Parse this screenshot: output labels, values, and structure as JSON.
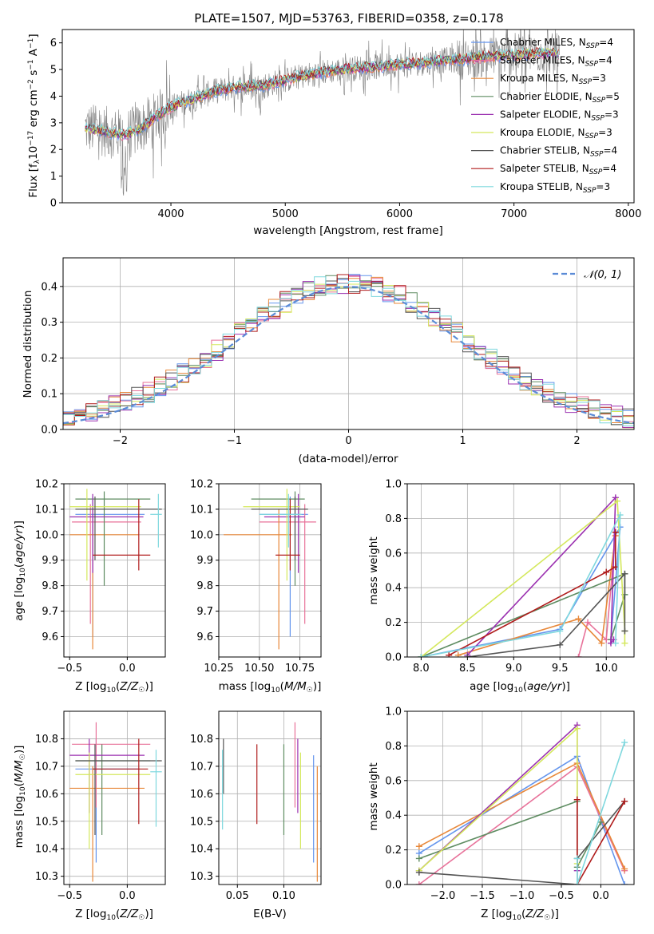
{
  "chart_data": [
    {
      "id": "spectrum",
      "type": "line",
      "title": "PLATE=1507, MJD=53763, FIBERID=0358, z=0.178",
      "xlabel": "wavelength [Angstrom, rest frame]",
      "ylabel": "Flux [f_λ10^-17 erg cm^-2 s^-1 A^-1]",
      "xlim": [
        3050,
        8050
      ],
      "ylim": [
        0,
        6.5
      ],
      "xticks": [
        4000,
        5000,
        6000,
        7000,
        8000
      ],
      "yticks": [
        0,
        1,
        2,
        3,
        4,
        5,
        6
      ],
      "grid": false,
      "legend_position": "right",
      "data_color": "#808080",
      "series": [
        {
          "name": "Chabrier MILES, N_SSP=4",
          "color": "#6495ED"
        },
        {
          "name": "Salpeter MILES, N_SSP=4",
          "color": "#E8729A"
        },
        {
          "name": "Kroupa MILES, N_SSP=3",
          "color": "#E8883A"
        },
        {
          "name": "Chabrier ELODIE, N_SSP=5",
          "color": "#5E8C61"
        },
        {
          "name": "Salpeter ELODIE, N_SSP=3",
          "color": "#9B30B0"
        },
        {
          "name": "Kroupa ELODIE, N_SSP=3",
          "color": "#D4E85C"
        },
        {
          "name": "Chabrier STELIB, N_SSP=4",
          "color": "#555555"
        },
        {
          "name": "Salpeter STELIB, N_SSP=4",
          "color": "#B01C1C"
        },
        {
          "name": "Kroupa STELIB, N_SSP=3",
          "color": "#7FD8DE"
        }
      ],
      "model_trace": {
        "x": [
          3250,
          3400,
          3500,
          3600,
          3700,
          3800,
          3900,
          4000,
          4200,
          4400,
          4600,
          4800,
          5000,
          5200,
          5400,
          5600,
          5800,
          6000,
          6200,
          6400,
          6600,
          6800,
          7000,
          7200,
          7400
        ],
        "y": [
          2.8,
          2.7,
          2.6,
          2.55,
          2.7,
          3.0,
          3.3,
          3.6,
          3.9,
          4.2,
          4.35,
          4.4,
          4.6,
          4.8,
          4.95,
          5.05,
          5.1,
          5.2,
          5.25,
          5.35,
          5.4,
          5.5,
          5.55,
          5.6,
          5.6
        ]
      }
    },
    {
      "id": "residuals",
      "type": "step",
      "xlabel": "(data-model)/error",
      "ylabel": "Normed distribution",
      "xlim": [
        -2.5,
        2.5
      ],
      "ylim": [
        0,
        0.48
      ],
      "xticks": [
        -2,
        -1,
        0,
        1,
        2
      ],
      "yticks": [
        0.0,
        0.1,
        0.2,
        0.3,
        0.4
      ],
      "grid": true,
      "legend": "𝒩(0, 1)",
      "legend_position": "top-right",
      "normal_curve_color": "#5B8BD6",
      "series_colors": [
        "#6495ED",
        "#E8729A",
        "#E8883A",
        "#5E8C61",
        "#9B30B0",
        "#D4E85C",
        "#555555",
        "#B01C1C",
        "#7FD8DE"
      ]
    },
    {
      "id": "age_vs_Z",
      "type": "errorbar",
      "xlabel": "Z [log10(Z/Z☉)]",
      "ylabel": "age  [log10(age/yr)]",
      "xlim": [
        -0.55,
        0.33
      ],
      "ylim": [
        9.52,
        10.2
      ],
      "xticks": [
        -0.5,
        0.0
      ],
      "xticklabels": [
        "−0.5",
        "0.0"
      ],
      "yticks": [
        9.6,
        9.7,
        9.8,
        9.9,
        10.0,
        10.1,
        10.2
      ],
      "points": [
        {
          "color": "#6495ED",
          "x": -0.3,
          "xlo": -0.45,
          "xhi": 0.15,
          "y": 10.08,
          "ylo": 9.6,
          "yhi": 10.15
        },
        {
          "color": "#E8729A",
          "x": -0.32,
          "xlo": -0.48,
          "xhi": 0.12,
          "y": 10.05,
          "ylo": 9.65,
          "yhi": 10.12
        },
        {
          "color": "#E8883A",
          "x": -0.3,
          "xlo": -0.5,
          "xhi": 0.1,
          "y": 10.0,
          "ylo": 9.55,
          "yhi": 10.1
        },
        {
          "color": "#5E8C61",
          "x": -0.2,
          "xlo": -0.45,
          "xhi": 0.2,
          "y": 10.14,
          "ylo": 9.8,
          "yhi": 10.17
        },
        {
          "color": "#9B30B0",
          "x": -0.3,
          "xlo": -0.5,
          "xhi": 0.14,
          "y": 10.07,
          "ylo": 9.85,
          "yhi": 10.16
        },
        {
          "color": "#D4E85C",
          "x": -0.35,
          "xlo": -0.5,
          "xhi": 0.12,
          "y": 10.11,
          "ylo": 9.82,
          "yhi": 10.18
        },
        {
          "color": "#555555",
          "x": -0.28,
          "xlo": -0.45,
          "xhi": 0.3,
          "y": 10.1,
          "ylo": 9.9,
          "yhi": 10.15
        },
        {
          "color": "#B01C1C",
          "x": 0.1,
          "xlo": -0.3,
          "xhi": 0.2,
          "y": 9.92,
          "ylo": 9.86,
          "yhi": 10.14
        },
        {
          "color": "#7FD8DE",
          "x": 0.27,
          "xlo": 0.2,
          "xhi": 0.3,
          "y": 10.08,
          "ylo": 9.95,
          "yhi": 10.16
        }
      ]
    },
    {
      "id": "age_vs_mass",
      "type": "errorbar",
      "xlabel": "mass [log10(M/M☉)]",
      "ylabel": "",
      "xlim": [
        10.25,
        10.88
      ],
      "ylim": [
        9.52,
        10.2
      ],
      "xticks": [
        10.25,
        10.5,
        10.75
      ],
      "xticklabels": [
        "10.25",
        "10.50",
        "10.75"
      ],
      "yticks": [
        9.6,
        9.7,
        9.8,
        9.9,
        10.0,
        10.1,
        10.2
      ],
      "points": [
        {
          "color": "#6495ED",
          "x": 10.69,
          "xlo": 10.5,
          "xhi": 10.8,
          "y": 10.08,
          "ylo": 9.6,
          "yhi": 10.15
        },
        {
          "color": "#E8729A",
          "x": 10.78,
          "xlo": 10.5,
          "xhi": 10.85,
          "y": 10.05,
          "ylo": 9.65,
          "yhi": 10.12
        },
        {
          "color": "#E8883A",
          "x": 10.62,
          "xlo": 10.28,
          "xhi": 10.7,
          "y": 10.0,
          "ylo": 9.55,
          "yhi": 10.1
        },
        {
          "color": "#5E8C61",
          "x": 10.72,
          "xlo": 10.45,
          "xhi": 10.78,
          "y": 10.14,
          "ylo": 9.8,
          "yhi": 10.17
        },
        {
          "color": "#9B30B0",
          "x": 10.74,
          "xlo": 10.53,
          "xhi": 10.78,
          "y": 10.07,
          "ylo": 9.85,
          "yhi": 10.16
        },
        {
          "color": "#D4E85C",
          "x": 10.67,
          "xlo": 10.4,
          "xhi": 10.75,
          "y": 10.11,
          "ylo": 9.82,
          "yhi": 10.18
        },
        {
          "color": "#555555",
          "x": 10.72,
          "xlo": 10.45,
          "xhi": 10.8,
          "y": 10.1,
          "ylo": 9.9,
          "yhi": 10.15
        },
        {
          "color": "#B01C1C",
          "x": 10.69,
          "xlo": 10.6,
          "xhi": 10.75,
          "y": 9.92,
          "ylo": 9.86,
          "yhi": 10.14
        },
        {
          "color": "#7FD8DE",
          "x": 10.68,
          "xlo": 10.5,
          "xhi": 10.76,
          "y": 10.08,
          "ylo": 9.95,
          "yhi": 10.16
        }
      ]
    },
    {
      "id": "weight_vs_age",
      "type": "line",
      "xlabel": "age  [log10(age/yr)]",
      "ylabel": "mass weight",
      "xlim": [
        7.85,
        10.3
      ],
      "ylim": [
        0,
        1.0
      ],
      "xticks": [
        8.0,
        8.5,
        9.0,
        9.5,
        10.0
      ],
      "yticks": [
        0.0,
        0.2,
        0.4,
        0.6,
        0.8,
        1.0
      ],
      "series": [
        {
          "color": "#6495ED",
          "x": [
            8.0,
            9.5,
            10.15,
            10.05
          ],
          "y": [
            0.0,
            0.16,
            0.75,
            0.1
          ]
        },
        {
          "color": "#E8729A",
          "x": [
            9.7,
            9.8,
            10.0,
            10.1
          ],
          "y": [
            0.0,
            0.2,
            0.1,
            0.7
          ]
        },
        {
          "color": "#E8883A",
          "x": [
            8.4,
            9.7,
            9.95,
            10.1
          ],
          "y": [
            0.01,
            0.22,
            0.08,
            0.7
          ]
        },
        {
          "color": "#5E8C61",
          "x": [
            8.0,
            10.2,
            10.2,
            10.05
          ],
          "y": [
            0.0,
            0.48,
            0.36,
            0.1
          ]
        },
        {
          "color": "#9B30B0",
          "x": [
            8.5,
            10.1,
            10.05,
            10.08
          ],
          "y": [
            0.01,
            0.92,
            0.08,
            0.1
          ]
        },
        {
          "color": "#D4E85C",
          "x": [
            8.0,
            10.12,
            10.2,
            10.2
          ],
          "y": [
            0.0,
            0.9,
            0.15,
            0.08
          ]
        },
        {
          "color": "#555555",
          "x": [
            8.5,
            9.5,
            10.2,
            10.2
          ],
          "y": [
            0.0,
            0.07,
            0.48,
            0.15
          ]
        },
        {
          "color": "#B01C1C",
          "x": [
            8.3,
            10.0,
            10.1,
            10.1
          ],
          "y": [
            0.01,
            0.49,
            0.52,
            0.72
          ]
        },
        {
          "color": "#7FD8DE",
          "x": [
            8.0,
            9.5,
            10.15,
            10.1
          ],
          "y": [
            0.0,
            0.15,
            0.82,
            0.08
          ]
        }
      ]
    },
    {
      "id": "mass_vs_Z",
      "type": "errorbar",
      "xlabel": "Z [log10(Z/Z☉)]",
      "ylabel": "mass [log10(M/M☉)]",
      "xlim": [
        -0.55,
        0.33
      ],
      "ylim": [
        10.27,
        10.9
      ],
      "xticks": [
        -0.5,
        0.0
      ],
      "xticklabels": [
        "−0.5",
        "0.0"
      ],
      "yticks": [
        10.3,
        10.4,
        10.5,
        10.6,
        10.7,
        10.8
      ],
      "points": [
        {
          "color": "#6495ED",
          "x": -0.27,
          "xlo": -0.45,
          "xhi": 0.1,
          "y": 10.69,
          "ylo": 10.35,
          "yhi": 10.8
        },
        {
          "color": "#E8729A",
          "x": -0.27,
          "xlo": -0.48,
          "xhi": 0.2,
          "y": 10.78,
          "ylo": 10.55,
          "yhi": 10.86
        },
        {
          "color": "#E8883A",
          "x": -0.3,
          "xlo": -0.5,
          "xhi": 0.15,
          "y": 10.62,
          "ylo": 10.28,
          "yhi": 10.7
        },
        {
          "color": "#5E8C61",
          "x": -0.22,
          "xlo": -0.45,
          "xhi": 0.2,
          "y": 10.72,
          "ylo": 10.45,
          "yhi": 10.78
        },
        {
          "color": "#9B30B0",
          "x": -0.33,
          "xlo": -0.5,
          "xhi": 0.15,
          "y": 10.74,
          "ylo": 10.53,
          "yhi": 10.8
        },
        {
          "color": "#D4E85C",
          "x": -0.33,
          "xlo": -0.45,
          "xhi": 0.2,
          "y": 10.67,
          "ylo": 10.4,
          "yhi": 10.75
        },
        {
          "color": "#555555",
          "x": -0.28,
          "xlo": -0.45,
          "xhi": 0.3,
          "y": 10.72,
          "ylo": 10.45,
          "yhi": 10.78
        },
        {
          "color": "#B01C1C",
          "x": 0.1,
          "xlo": -0.3,
          "xhi": 0.18,
          "y": 10.69,
          "ylo": 10.49,
          "yhi": 10.8
        },
        {
          "color": "#7FD8DE",
          "x": 0.25,
          "xlo": 0.2,
          "xhi": 0.3,
          "y": 10.68,
          "ylo": 10.48,
          "yhi": 10.76
        }
      ]
    },
    {
      "id": "mass_vs_EBV",
      "type": "errorbar",
      "xlabel": "E(B-V)",
      "ylabel": "",
      "xlim": [
        0.03,
        0.14
      ],
      "ylim": [
        10.27,
        10.9
      ],
      "xticks": [
        0.05,
        0.1
      ],
      "xticklabels": [
        "0.05",
        "0.10"
      ],
      "yticks": [
        10.3,
        10.4,
        10.5,
        10.6,
        10.7,
        10.8
      ],
      "points": [
        {
          "color": "#6495ED",
          "x": 0.132,
          "ylo": 10.35,
          "yhi": 10.74
        },
        {
          "color": "#E8729A",
          "x": 0.112,
          "ylo": 10.55,
          "yhi": 10.86
        },
        {
          "color": "#E8883A",
          "x": 0.136,
          "ylo": 10.28,
          "yhi": 10.7
        },
        {
          "color": "#5E8C61",
          "x": 0.1,
          "ylo": 10.45,
          "yhi": 10.78
        },
        {
          "color": "#9B30B0",
          "x": 0.115,
          "ylo": 10.53,
          "yhi": 10.8
        },
        {
          "color": "#D4E85C",
          "x": 0.118,
          "ylo": 10.4,
          "yhi": 10.75
        },
        {
          "color": "#555555",
          "x": 0.035,
          "ylo": 10.6,
          "yhi": 10.8
        },
        {
          "color": "#B01C1C",
          "x": 0.071,
          "ylo": 10.49,
          "yhi": 10.78
        },
        {
          "color": "#7FD8DE",
          "x": 0.034,
          "ylo": 10.47,
          "yhi": 10.76
        }
      ]
    },
    {
      "id": "weight_vs_Z",
      "type": "line",
      "xlabel": "Z [log10(Z/Z☉)]",
      "ylabel": "mass weight",
      "xlim": [
        -2.45,
        0.42
      ],
      "ylim": [
        0,
        1.0
      ],
      "xticks": [
        -2.0,
        -1.5,
        -1.0,
        -0.5,
        0.0
      ],
      "xticklabels": [
        "−2.0",
        "−1.5",
        "−1.0",
        "−0.5",
        "0.0"
      ],
      "yticks": [
        0.0,
        0.2,
        0.4,
        0.6,
        0.8,
        1.0
      ],
      "series": [
        {
          "color": "#6495ED",
          "x": [
            -2.3,
            -0.3,
            0.3
          ],
          "y": [
            0.18,
            0.74,
            0.0
          ]
        },
        {
          "color": "#E8729A",
          "x": [
            -2.3,
            -0.3,
            0.3
          ],
          "y": [
            0.0,
            0.68,
            0.08
          ]
        },
        {
          "color": "#E8883A",
          "x": [
            -2.3,
            -0.3,
            0.3
          ],
          "y": [
            0.22,
            0.7,
            0.09
          ]
        },
        {
          "color": "#5E8C61",
          "x": [
            -2.3,
            -0.3,
            -0.3,
            0.0
          ],
          "y": [
            0.15,
            0.48,
            0.1,
            0.36
          ]
        },
        {
          "color": "#9B30B0",
          "x": [
            -2.3,
            -0.3,
            -0.3
          ],
          "y": [
            0.08,
            0.92,
            0.08
          ]
        },
        {
          "color": "#D4E85C",
          "x": [
            -2.3,
            -0.3,
            -0.3
          ],
          "y": [
            0.08,
            0.9,
            0.12
          ]
        },
        {
          "color": "#555555",
          "x": [
            -2.3,
            -0.3,
            -0.3,
            0.3
          ],
          "y": [
            0.07,
            0.0,
            0.15,
            0.48
          ]
        },
        {
          "color": "#B01C1C",
          "x": [
            -0.3,
            -0.3,
            0.3
          ],
          "y": [
            0.49,
            0.0,
            0.48
          ]
        },
        {
          "color": "#7FD8DE",
          "x": [
            -0.3,
            -0.3,
            0.3
          ],
          "y": [
            0.15,
            0.0,
            0.82
          ]
        }
      ]
    }
  ]
}
